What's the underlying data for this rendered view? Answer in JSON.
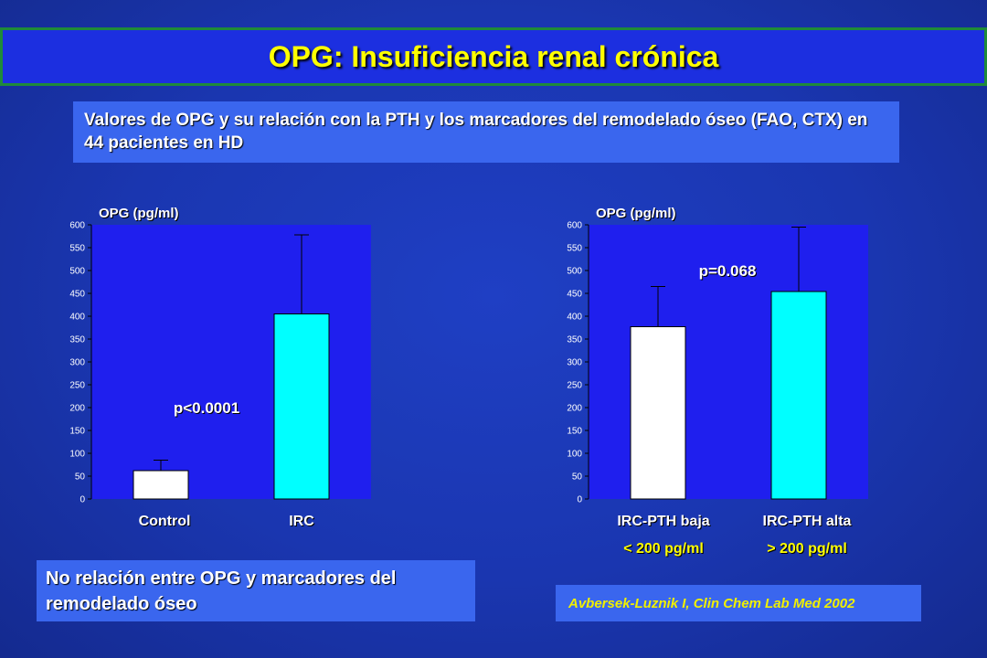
{
  "title": "OPG: Insuficiencia renal crónica",
  "subtitle": "Valores de OPG y su relación con la PTH  y los marcadores del remodelado óseo (FAO, CTX) en 44 pacientes en HD",
  "conclusion": "No relación entre OPG y marcadores del remodelado óseo",
  "citation": "Avbersek-Luznik I, Clin Chem Lab Med 2002",
  "colors": {
    "plot_bg": "#1f1fee",
    "bar_white": "#ffffff",
    "bar_cyan": "#00ffff",
    "sublabel": "#ffff00"
  },
  "chart_data": [
    {
      "type": "bar",
      "ylabel": "OPG (pg/ml)",
      "ylim": [
        0,
        600
      ],
      "ytick_step": 50,
      "categories": [
        "Control",
        "IRC"
      ],
      "category_sublabels": [
        "",
        ""
      ],
      "values": [
        62,
        405
      ],
      "error_upper": [
        85,
        578
      ],
      "bar_colors": [
        "#ffffff",
        "#00ffff"
      ],
      "annotation": "p<0.0001",
      "grid": false
    },
    {
      "type": "bar",
      "ylabel": "OPG (pg/ml)",
      "ylim": [
        0,
        600
      ],
      "ytick_step": 50,
      "categories": [
        "IRC-PTH baja",
        "IRC-PTH alta"
      ],
      "category_sublabels": [
        "< 200 pg/ml",
        "> 200 pg/ml"
      ],
      "values": [
        377,
        454
      ],
      "error_upper": [
        465,
        595
      ],
      "bar_colors": [
        "#ffffff",
        "#00ffff"
      ],
      "annotation": "p=0.068",
      "grid": false
    }
  ]
}
